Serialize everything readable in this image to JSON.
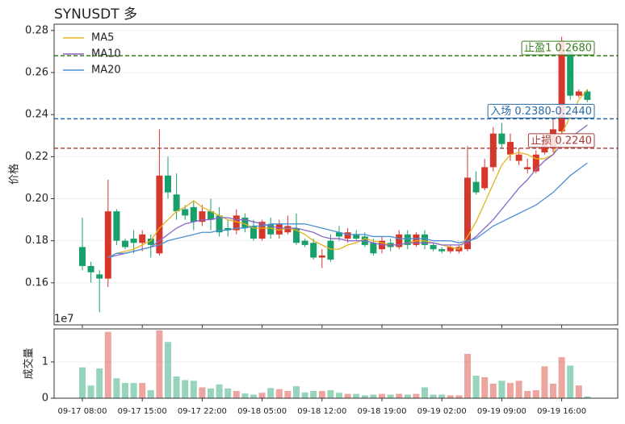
{
  "chart_data": [
    {
      "type": "candlestick",
      "title": "SYNUSDT  多",
      "ylabel": "价格",
      "open": [
        0.177,
        0.168,
        0.164,
        0.162,
        0.194,
        0.18,
        0.181,
        0.179,
        0.181,
        0.174,
        0.211,
        0.202,
        0.195,
        0.196,
        0.189,
        0.194,
        0.192,
        0.186,
        0.185,
        0.191,
        0.187,
        0.181,
        0.188,
        0.183,
        0.184,
        0.186,
        0.18,
        0.179,
        0.172,
        0.18,
        0.184,
        0.181,
        0.183,
        0.182,
        0.179,
        0.176,
        0.179,
        0.177,
        0.183,
        0.178,
        0.183,
        0.178,
        0.176,
        0.175,
        0.175,
        0.176,
        0.208,
        0.205,
        0.215,
        0.231,
        0.221,
        0.218,
        0.214,
        0.213,
        0.222,
        0.224,
        0.232,
        0.27,
        0.249,
        0.251
      ],
      "high": [
        0.191,
        0.17,
        0.166,
        0.209,
        0.195,
        0.181,
        0.185,
        0.185,
        0.183,
        0.233,
        0.22,
        0.212,
        0.197,
        0.199,
        0.197,
        0.2,
        0.196,
        0.19,
        0.195,
        0.193,
        0.19,
        0.19,
        0.191,
        0.19,
        0.192,
        0.193,
        0.181,
        0.181,
        0.176,
        0.183,
        0.187,
        0.186,
        0.185,
        0.184,
        0.181,
        0.182,
        0.181,
        0.185,
        0.185,
        0.184,
        0.185,
        0.179,
        0.177,
        0.178,
        0.178,
        0.225,
        0.213,
        0.219,
        0.234,
        0.236,
        0.231,
        0.224,
        0.219,
        0.223,
        0.23,
        0.241,
        0.277,
        0.272,
        0.252,
        0.252
      ],
      "low": [
        0.166,
        0.16,
        0.146,
        0.158,
        0.178,
        0.176,
        0.174,
        0.175,
        0.172,
        0.173,
        0.2,
        0.19,
        0.19,
        0.185,
        0.187,
        0.185,
        0.182,
        0.182,
        0.183,
        0.184,
        0.18,
        0.18,
        0.181,
        0.181,
        0.183,
        0.178,
        0.177,
        0.171,
        0.167,
        0.17,
        0.18,
        0.179,
        0.18,
        0.177,
        0.173,
        0.174,
        0.175,
        0.176,
        0.176,
        0.177,
        0.176,
        0.175,
        0.174,
        0.174,
        0.174,
        0.175,
        0.202,
        0.204,
        0.213,
        0.224,
        0.218,
        0.216,
        0.212,
        0.212,
        0.221,
        0.222,
        0.23,
        0.247,
        0.248,
        0.246
      ],
      "close": [
        0.168,
        0.165,
        0.162,
        0.194,
        0.18,
        0.177,
        0.179,
        0.183,
        0.178,
        0.211,
        0.203,
        0.194,
        0.192,
        0.189,
        0.194,
        0.19,
        0.184,
        0.185,
        0.192,
        0.186,
        0.181,
        0.189,
        0.183,
        0.188,
        0.187,
        0.179,
        0.178,
        0.172,
        0.173,
        0.171,
        0.182,
        0.184,
        0.181,
        0.178,
        0.174,
        0.18,
        0.177,
        0.183,
        0.178,
        0.183,
        0.178,
        0.176,
        0.175,
        0.177,
        0.177,
        0.21,
        0.203,
        0.215,
        0.231,
        0.226,
        0.227,
        0.221,
        0.215,
        0.221,
        0.228,
        0.233,
        0.275,
        0.249,
        0.251,
        0.247
      ],
      "up_color": "#d6372b",
      "down_color": "#17a06a",
      "series": [
        {
          "name": "MA5",
          "color": "#e6b31e",
          "values": [
            null,
            null,
            null,
            0.172,
            0.174,
            0.175,
            0.176,
            0.178,
            0.18,
            0.186,
            0.19,
            0.194,
            0.196,
            0.199,
            0.196,
            0.194,
            0.192,
            0.19,
            0.189,
            0.188,
            0.186,
            0.186,
            0.186,
            0.185,
            0.186,
            0.185,
            0.183,
            0.18,
            0.178,
            0.176,
            0.176,
            0.178,
            0.179,
            0.181,
            0.18,
            0.179,
            0.178,
            0.178,
            0.179,
            0.18,
            0.18,
            0.179,
            0.178,
            0.177,
            0.176,
            0.182,
            0.189,
            0.198,
            0.207,
            0.216,
            0.221,
            0.222,
            0.221,
            0.219,
            0.219,
            0.221,
            0.231,
            0.239,
            0.247,
            0.252
          ]
        },
        {
          "name": "MA10",
          "color": "#8a66c6",
          "values": [
            null,
            null,
            null,
            0.172,
            0.173,
            0.174,
            0.175,
            0.176,
            0.177,
            0.18,
            0.183,
            0.186,
            0.188,
            0.189,
            0.19,
            0.19,
            0.191,
            0.191,
            0.19,
            0.19,
            0.189,
            0.188,
            0.187,
            0.186,
            0.186,
            0.186,
            0.185,
            0.184,
            0.182,
            0.181,
            0.181,
            0.18,
            0.18,
            0.18,
            0.179,
            0.178,
            0.178,
            0.178,
            0.179,
            0.179,
            0.179,
            0.179,
            0.178,
            0.178,
            0.178,
            0.179,
            0.182,
            0.186,
            0.19,
            0.195,
            0.2,
            0.205,
            0.209,
            0.214,
            0.218,
            0.221,
            0.226,
            0.229,
            0.232,
            0.235
          ]
        },
        {
          "name": "MA20",
          "color": "#4b8fd6",
          "values": [
            null,
            null,
            null,
            0.172,
            0.174,
            0.174,
            0.175,
            0.176,
            0.177,
            0.178,
            0.18,
            0.181,
            0.182,
            0.183,
            0.184,
            0.184,
            0.185,
            0.185,
            0.186,
            0.186,
            0.187,
            0.187,
            0.188,
            0.188,
            0.188,
            0.188,
            0.188,
            0.187,
            0.186,
            0.185,
            0.184,
            0.183,
            0.183,
            0.183,
            0.182,
            0.182,
            0.182,
            0.181,
            0.181,
            0.181,
            0.181,
            0.18,
            0.18,
            0.18,
            0.179,
            0.18,
            0.181,
            0.184,
            0.187,
            0.189,
            0.191,
            0.193,
            0.195,
            0.197,
            0.2,
            0.203,
            0.207,
            0.211,
            0.214,
            0.217
          ]
        }
      ],
      "levels": [
        {
          "label": "止盈1 0.2680",
          "value": 0.268,
          "color": "#3b7d1e"
        },
        {
          "label": "入场 0.2380-0.2440",
          "value": 0.238,
          "color": "#2a6aa8"
        },
        {
          "label": "止损 0.2240",
          "value": 0.224,
          "color": "#a83a34"
        }
      ],
      "ylim": [
        0.14,
        0.283
      ],
      "yticks": [
        0.16,
        0.18,
        {
          "value": 0.2,
          "label": "0.20"
        },
        0.22,
        0.24,
        0.26,
        0.28
      ],
      "grid": true,
      "legend": "upper left"
    },
    {
      "type": "bar",
      "ylabel": "成交量",
      "offset_label": "1e7",
      "categories": [
        "09-17 08:00",
        null,
        null,
        null,
        null,
        null,
        null,
        "09-17 15:00",
        null,
        null,
        null,
        null,
        null,
        null,
        "09-17 22:00",
        null,
        null,
        null,
        null,
        null,
        null,
        "09-18 05:00",
        null,
        null,
        null,
        null,
        null,
        null,
        "09-18 12:00",
        null,
        null,
        null,
        null,
        null,
        null,
        "09-18 19:00",
        null,
        null,
        null,
        null,
        null,
        null,
        "09-19 02:00",
        null,
        null,
        null,
        null,
        null,
        null,
        "09-19 09:00",
        null,
        null,
        null,
        null,
        null,
        null,
        "09-19 16:00",
        null,
        null,
        null
      ],
      "values": [
        0.85,
        0.35,
        0.82,
        1.83,
        0.55,
        0.42,
        0.42,
        0.42,
        0.22,
        1.87,
        1.55,
        0.6,
        0.5,
        0.48,
        0.3,
        0.27,
        0.38,
        0.27,
        0.2,
        0.13,
        0.1,
        0.15,
        0.28,
        0.25,
        0.2,
        0.33,
        0.16,
        0.2,
        0.2,
        0.22,
        0.15,
        0.12,
        0.12,
        0.08,
        0.1,
        0.12,
        0.1,
        0.12,
        0.1,
        0.12,
        0.3,
        0.1,
        0.1,
        0.08,
        0.08,
        1.22,
        0.62,
        0.58,
        0.4,
        0.48,
        0.42,
        0.48,
        0.2,
        0.22,
        0.88,
        0.4,
        1.13,
        0.9,
        0.35,
        0.05
      ],
      "ylim": [
        0,
        1.91
      ],
      "yticks": [
        0,
        1
      ],
      "grid": true
    }
  ]
}
